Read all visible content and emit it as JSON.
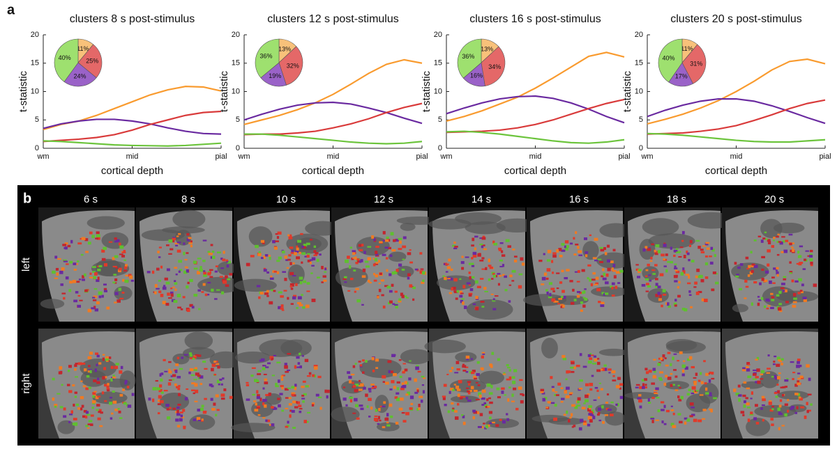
{
  "panel_a_label": "a",
  "chart_data": [
    {
      "type": "line",
      "title": "clusters 8 s post-stimulus",
      "xlabel": "cortical depth",
      "ylabel": "t-statistic",
      "x": [
        0,
        0.1,
        0.2,
        0.3,
        0.4,
        0.5,
        0.6,
        0.7,
        0.8,
        0.9,
        1
      ],
      "xlim": [
        0,
        1
      ],
      "xticks": [
        {
          "value": 0,
          "label": "wm"
        },
        {
          "value": 0.5,
          "label": "mid"
        },
        {
          "value": 1,
          "label": "pial"
        }
      ],
      "ylim": [
        0,
        20
      ],
      "yticks": [
        0,
        5,
        10,
        15,
        20
      ],
      "series": [
        {
          "color": "#f99b2f",
          "values": [
            3.3,
            4.2,
            4.8,
            5.8,
            7.0,
            8.2,
            9.4,
            10.3,
            10.9,
            10.8,
            10.1
          ]
        },
        {
          "color": "#6a2aa0",
          "values": [
            3.5,
            4.3,
            4.8,
            5.1,
            5.1,
            4.8,
            4.3,
            3.6,
            3.0,
            2.6,
            2.5
          ]
        },
        {
          "color": "#d93b3b",
          "values": [
            1.2,
            1.4,
            1.6,
            1.9,
            2.4,
            3.2,
            4.2,
            5.0,
            5.8,
            6.3,
            6.5
          ]
        },
        {
          "color": "#6cc43c",
          "values": [
            1.3,
            1.2,
            1.0,
            0.8,
            0.6,
            0.5,
            0.45,
            0.4,
            0.5,
            0.7,
            0.9
          ]
        }
      ],
      "inset": {
        "type": "pie",
        "values": [
          11,
          25,
          24,
          40
        ],
        "value_labels": [
          "11%",
          "25%",
          "24%",
          "40%"
        ],
        "colors": [
          "#f8c17a",
          "#e46868",
          "#9a62c8",
          "#9ee06f"
        ]
      }
    },
    {
      "type": "line",
      "title": "clusters 12 s post-stimulus",
      "xlabel": "cortical depth",
      "ylabel": "t-statistic",
      "x": [
        0,
        0.1,
        0.2,
        0.3,
        0.4,
        0.5,
        0.6,
        0.7,
        0.8,
        0.9,
        1
      ],
      "xlim": [
        0,
        1
      ],
      "xticks": [
        {
          "value": 0,
          "label": "wm"
        },
        {
          "value": 0.5,
          "label": "mid"
        },
        {
          "value": 1,
          "label": "pial"
        }
      ],
      "ylim": [
        0,
        20
      ],
      "yticks": [
        0,
        5,
        10,
        15,
        20
      ],
      "series": [
        {
          "color": "#f99b2f",
          "values": [
            4.2,
            5.0,
            5.8,
            6.8,
            8.0,
            9.5,
            11.3,
            13.2,
            14.8,
            15.6,
            15.0
          ]
        },
        {
          "color": "#6a2aa0",
          "values": [
            5.0,
            6.0,
            6.9,
            7.6,
            8.0,
            8.1,
            7.8,
            7.1,
            6.3,
            5.3,
            4.4
          ]
        },
        {
          "color": "#d93b3b",
          "values": [
            2.4,
            2.5,
            2.5,
            2.7,
            3.0,
            3.6,
            4.3,
            5.2,
            6.3,
            7.2,
            7.9
          ]
        },
        {
          "color": "#6cc43c",
          "values": [
            2.5,
            2.5,
            2.3,
            2.0,
            1.7,
            1.4,
            1.1,
            0.9,
            0.8,
            0.9,
            1.2
          ]
        }
      ],
      "inset": {
        "type": "pie",
        "values": [
          13,
          32,
          19,
          36
        ],
        "value_labels": [
          "13%",
          "32%",
          "19%",
          "36%"
        ],
        "colors": [
          "#f8c17a",
          "#e46868",
          "#9a62c8",
          "#9ee06f"
        ]
      }
    },
    {
      "type": "line",
      "title": "clusters 16 s post-stimulus",
      "xlabel": "cortical depth",
      "ylabel": "t-statistic",
      "x": [
        0,
        0.1,
        0.2,
        0.3,
        0.4,
        0.5,
        0.6,
        0.7,
        0.8,
        0.9,
        1
      ],
      "xlim": [
        0,
        1
      ],
      "xticks": [
        {
          "value": 0,
          "label": "wm"
        },
        {
          "value": 0.5,
          "label": "mid"
        },
        {
          "value": 1,
          "label": "pial"
        }
      ],
      "ylim": [
        0,
        20
      ],
      "yticks": [
        0,
        5,
        10,
        15,
        20
      ],
      "series": [
        {
          "color": "#f99b2f",
          "values": [
            4.8,
            5.6,
            6.6,
            7.8,
            9.0,
            10.6,
            12.4,
            14.3,
            16.2,
            16.9,
            16.1
          ]
        },
        {
          "color": "#6a2aa0",
          "values": [
            6.1,
            7.1,
            8.0,
            8.7,
            9.1,
            9.2,
            8.8,
            8.0,
            6.9,
            5.6,
            4.5
          ]
        },
        {
          "color": "#d93b3b",
          "values": [
            2.8,
            2.9,
            3.0,
            3.2,
            3.6,
            4.2,
            5.0,
            6.0,
            7.0,
            7.9,
            8.6
          ]
        },
        {
          "color": "#6cc43c",
          "values": [
            2.9,
            3.0,
            2.8,
            2.5,
            2.1,
            1.7,
            1.3,
            1.0,
            0.9,
            1.1,
            1.5
          ]
        }
      ],
      "inset": {
        "type": "pie",
        "values": [
          13,
          34,
          16,
          36
        ],
        "value_labels": [
          "13%",
          "34%",
          "16%",
          "36%"
        ],
        "colors": [
          "#f8c17a",
          "#e46868",
          "#9a62c8",
          "#9ee06f"
        ]
      }
    },
    {
      "type": "line",
      "title": "clusters 20 s post-stimulus",
      "xlabel": "cortical depth",
      "ylabel": "t-statistic",
      "x": [
        0,
        0.1,
        0.2,
        0.3,
        0.4,
        0.5,
        0.6,
        0.7,
        0.8,
        0.9,
        1
      ],
      "xlim": [
        0,
        1
      ],
      "xticks": [
        {
          "value": 0,
          "label": "wm"
        },
        {
          "value": 0.5,
          "label": "mid"
        },
        {
          "value": 1,
          "label": "pial"
        }
      ],
      "ylim": [
        0,
        20
      ],
      "yticks": [
        0,
        5,
        10,
        15,
        20
      ],
      "series": [
        {
          "color": "#f99b2f",
          "values": [
            4.3,
            5.1,
            6.0,
            7.1,
            8.4,
            10.0,
            11.8,
            13.8,
            15.3,
            15.7,
            14.9
          ]
        },
        {
          "color": "#6a2aa0",
          "values": [
            5.6,
            6.7,
            7.6,
            8.3,
            8.7,
            8.7,
            8.3,
            7.5,
            6.5,
            5.4,
            4.4
          ]
        },
        {
          "color": "#d93b3b",
          "values": [
            2.5,
            2.6,
            2.7,
            3.0,
            3.4,
            4.0,
            4.9,
            5.9,
            7.0,
            7.9,
            8.5
          ]
        },
        {
          "color": "#6cc43c",
          "values": [
            2.6,
            2.5,
            2.3,
            2.0,
            1.7,
            1.4,
            1.2,
            1.1,
            1.1,
            1.3,
            1.5
          ]
        }
      ],
      "inset": {
        "type": "pie",
        "values": [
          11,
          31,
          17,
          40
        ],
        "value_labels": [
          "11%",
          "31%",
          "17%",
          "40%"
        ],
        "colors": [
          "#f8c17a",
          "#e46868",
          "#9a62c8",
          "#9ee06f"
        ]
      }
    }
  ],
  "panel_b": {
    "label": "b",
    "columns": [
      "6 s",
      "8 s",
      "10 s",
      "12 s",
      "14 s",
      "16 s",
      "18 s",
      "20 s"
    ],
    "rows": [
      "left",
      "right"
    ]
  }
}
